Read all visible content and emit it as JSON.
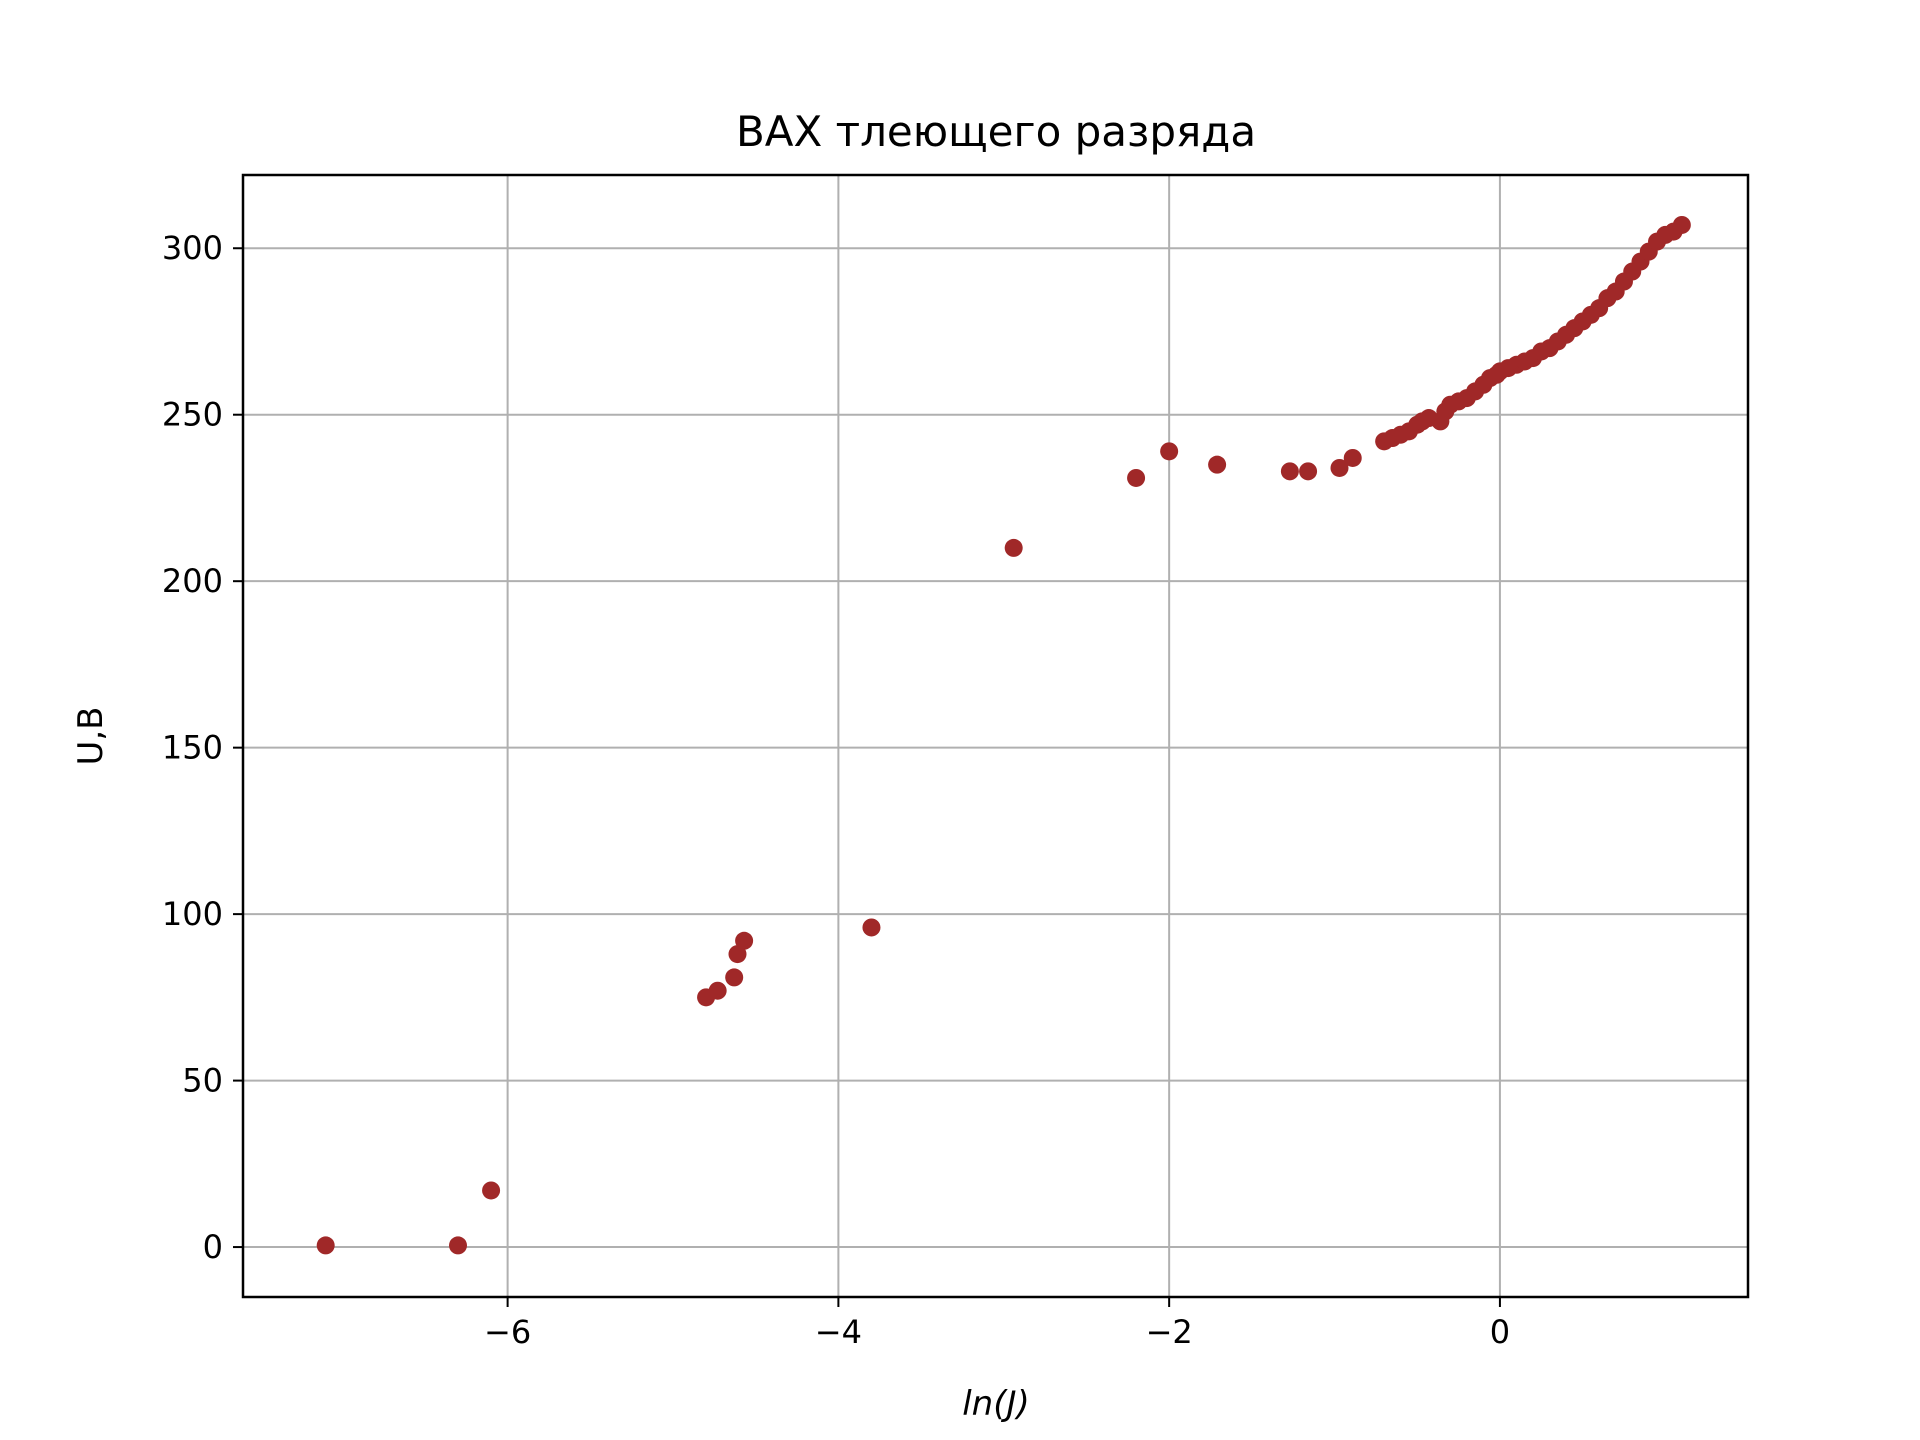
{
  "chart_data": {
    "type": "scatter",
    "title": "ВАХ тлеющего разряда",
    "xlabel": "ln(J)",
    "ylabel": "U,В",
    "xlim": [
      -7.6,
      1.5
    ],
    "ylim": [
      -15,
      322
    ],
    "xticks": [
      -6,
      -4,
      -2,
      0
    ],
    "xtick_labels": [
      "−6",
      "−4",
      "−2",
      "0"
    ],
    "yticks": [
      0,
      50,
      100,
      150,
      200,
      250,
      300
    ],
    "ytick_labels": [
      "0",
      "50",
      "100",
      "150",
      "200",
      "250",
      "300"
    ],
    "grid": true,
    "marker_color": "#a02828",
    "series": [
      {
        "x": [
          -7.1,
          -6.3,
          -6.1,
          -4.8,
          -4.73,
          -4.63,
          -4.61,
          -4.57,
          -3.8,
          -2.94,
          -2.2,
          -2.0,
          -1.71,
          -1.27,
          -1.16,
          -0.97,
          -0.89,
          -0.7,
          -0.65,
          -0.6,
          -0.55,
          -0.5,
          -0.47,
          -0.43,
          -0.36,
          -0.33,
          -0.3,
          -0.25,
          -0.2,
          -0.15,
          -0.1,
          -0.06,
          -0.02,
          0.0,
          0.05,
          0.1,
          0.15,
          0.2,
          0.25,
          0.3,
          0.35,
          0.4,
          0.45,
          0.5,
          0.55,
          0.6,
          0.65,
          0.7,
          0.75,
          0.8,
          0.85,
          0.9,
          0.95,
          1.0,
          1.05,
          1.1
        ],
        "y": [
          0.5,
          0.5,
          17,
          75,
          77,
          81,
          88,
          92,
          96,
          210,
          231,
          239,
          235,
          233,
          233,
          234,
          237,
          242,
          243,
          244,
          245,
          247,
          248,
          249,
          248,
          251,
          253,
          254,
          255,
          257,
          259,
          261,
          262,
          263,
          264,
          265,
          266,
          267,
          269,
          270,
          272,
          274,
          276,
          278,
          280,
          282,
          285,
          287,
          290,
          293,
          296,
          299,
          302,
          304,
          305,
          307
        ]
      }
    ]
  }
}
